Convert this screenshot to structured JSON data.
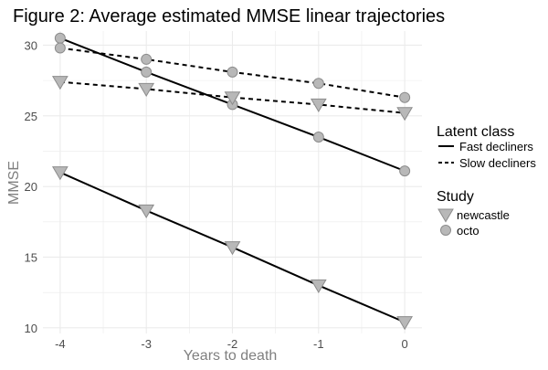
{
  "chart_data": {
    "type": "line",
    "title": "Figure 2: Average estimated MMSE linear trajectories",
    "xlabel": "Years to death",
    "ylabel": "MMSE",
    "xlim": [
      -4.2,
      0.2
    ],
    "ylim": [
      9.6,
      31.0
    ],
    "x_ticks": [
      -4,
      -3,
      -2,
      -1,
      0
    ],
    "y_ticks": [
      10,
      15,
      20,
      25,
      30
    ],
    "grid": true,
    "legends": [
      {
        "title": "Latent class",
        "placement": "right",
        "entries": [
          {
            "label": "Fast decliners",
            "line_style": "solid"
          },
          {
            "label": "Slow decliners",
            "line_style": "dashed"
          }
        ]
      },
      {
        "title": "Study",
        "placement": "right",
        "entries": [
          {
            "label": "newcastle",
            "marker": "triangle-down"
          },
          {
            "label": "octo",
            "marker": "circle"
          }
        ]
      }
    ],
    "series": [
      {
        "class": "Fast decliners",
        "study": "octo",
        "line_style": "solid",
        "marker": "circle",
        "x": [
          -4,
          -3,
          -2,
          -1,
          0
        ],
        "values": [
          30.5,
          28.1,
          25.8,
          23.5,
          21.1
        ]
      },
      {
        "class": "Slow decliners",
        "study": "octo",
        "line_style": "dashed",
        "marker": "circle",
        "x": [
          -4,
          -3,
          -2,
          -1,
          0
        ],
        "values": [
          29.8,
          29.0,
          28.1,
          27.3,
          26.3
        ]
      },
      {
        "class": "Slow decliners",
        "study": "newcastle",
        "line_style": "dashed",
        "marker": "triangle-down",
        "x": [
          -4,
          -3,
          -2,
          -1,
          0
        ],
        "values": [
          27.4,
          26.9,
          26.3,
          25.8,
          25.2
        ]
      },
      {
        "class": "Fast decliners",
        "study": "newcastle",
        "line_style": "solid",
        "marker": "triangle-down",
        "x": [
          -4,
          -3,
          -2,
          -1,
          0
        ],
        "values": [
          21.0,
          18.3,
          15.7,
          13.0,
          10.4
        ]
      }
    ],
    "colors": {
      "line": "#000000",
      "marker_fill": "#b8b8b8",
      "marker_stroke": "#8c8c8c",
      "grid": "#ebebeb",
      "axis_text": "#4d4d4d",
      "axis_title": "#7f7f7f"
    }
  }
}
